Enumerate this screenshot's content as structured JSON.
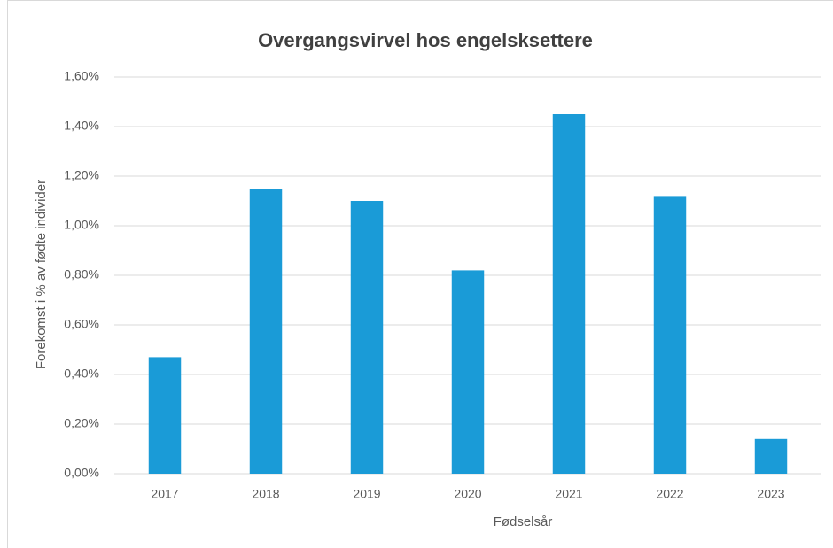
{
  "chart_data": {
    "type": "bar",
    "title": "Overgangsvirvel hos engelsksettere",
    "x_label": "Fødselsår",
    "y_label": "Forekomst i % av fødte individer",
    "categories": [
      "2017",
      "2018",
      "2019",
      "2020",
      "2021",
      "2022",
      "2023"
    ],
    "values": [
      0.47,
      1.15,
      1.1,
      0.82,
      1.45,
      1.12,
      0.14
    ],
    "color": "#1a9bd7",
    "ylim": [
      0,
      1.6
    ],
    "yticks": [
      {
        "value": 0,
        "label": "0,00%"
      },
      {
        "value": 0.2,
        "label": "0,20%"
      },
      {
        "value": 0.4,
        "label": "0,40%"
      },
      {
        "value": 0.6,
        "label": "0,60%"
      },
      {
        "value": 0.8,
        "label": "0,80%"
      },
      {
        "value": 1.0,
        "label": "1,00%"
      },
      {
        "value": 1.2,
        "label": "1,20%"
      },
      {
        "value": 1.4,
        "label": "1,40%"
      },
      {
        "value": 1.6,
        "label": "1,60%"
      }
    ],
    "grid": true
  }
}
